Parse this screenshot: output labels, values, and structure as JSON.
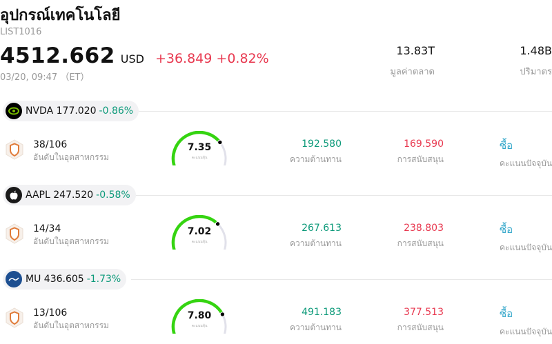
{
  "header": {
    "title": "อุปกรณ์เทคโนโลยี",
    "code": "LIST1016",
    "price": "4512.662",
    "currency": "USD",
    "change": "+36.849 +0.82%",
    "timestamp": "03/20, 09:47 （ET）",
    "market_cap_value": "13.83T",
    "market_cap_label": "มูลค่าตลาด",
    "volume_value": "1.48B",
    "volume_label": "ปริมาตร"
  },
  "labels": {
    "rank_caption": "อันดับในอุตสาหกรรม",
    "resistance_caption": "ความต้านทาน",
    "support_caption": "การสนับสนุน",
    "recommendation_caption": "คะแนนปัจจุบัน",
    "score_caption": "คะแนนหุ้น"
  },
  "colors": {
    "up": "#e8384f",
    "down": "#0d9a7a",
    "gauge_fill": "#35d411",
    "gauge_track": "#e1e1ea",
    "recommendation": "#2fa5c9"
  },
  "stocks": [
    {
      "ticker": "NVDA",
      "price": "177.020",
      "change": "-0.86%",
      "logo_icon": "nvidia-logo-icon",
      "rank": "38/106",
      "score": "7.35",
      "score_fraction": 0.735,
      "resistance": "192.580",
      "support": "169.590",
      "recommendation": "ซื้อ"
    },
    {
      "ticker": "AAPL",
      "price": "247.520",
      "change": "-0.58%",
      "logo_icon": "apple-logo-icon",
      "rank": "14/34",
      "score": "7.02",
      "score_fraction": 0.702,
      "resistance": "267.613",
      "support": "238.803",
      "recommendation": "ซื้อ"
    },
    {
      "ticker": "MU",
      "price": "436.605",
      "change": "-1.73%",
      "logo_icon": "micron-logo-icon",
      "rank": "13/106",
      "score": "7.80",
      "score_fraction": 0.78,
      "resistance": "491.183",
      "support": "377.513",
      "recommendation": "ซื้อ"
    }
  ]
}
